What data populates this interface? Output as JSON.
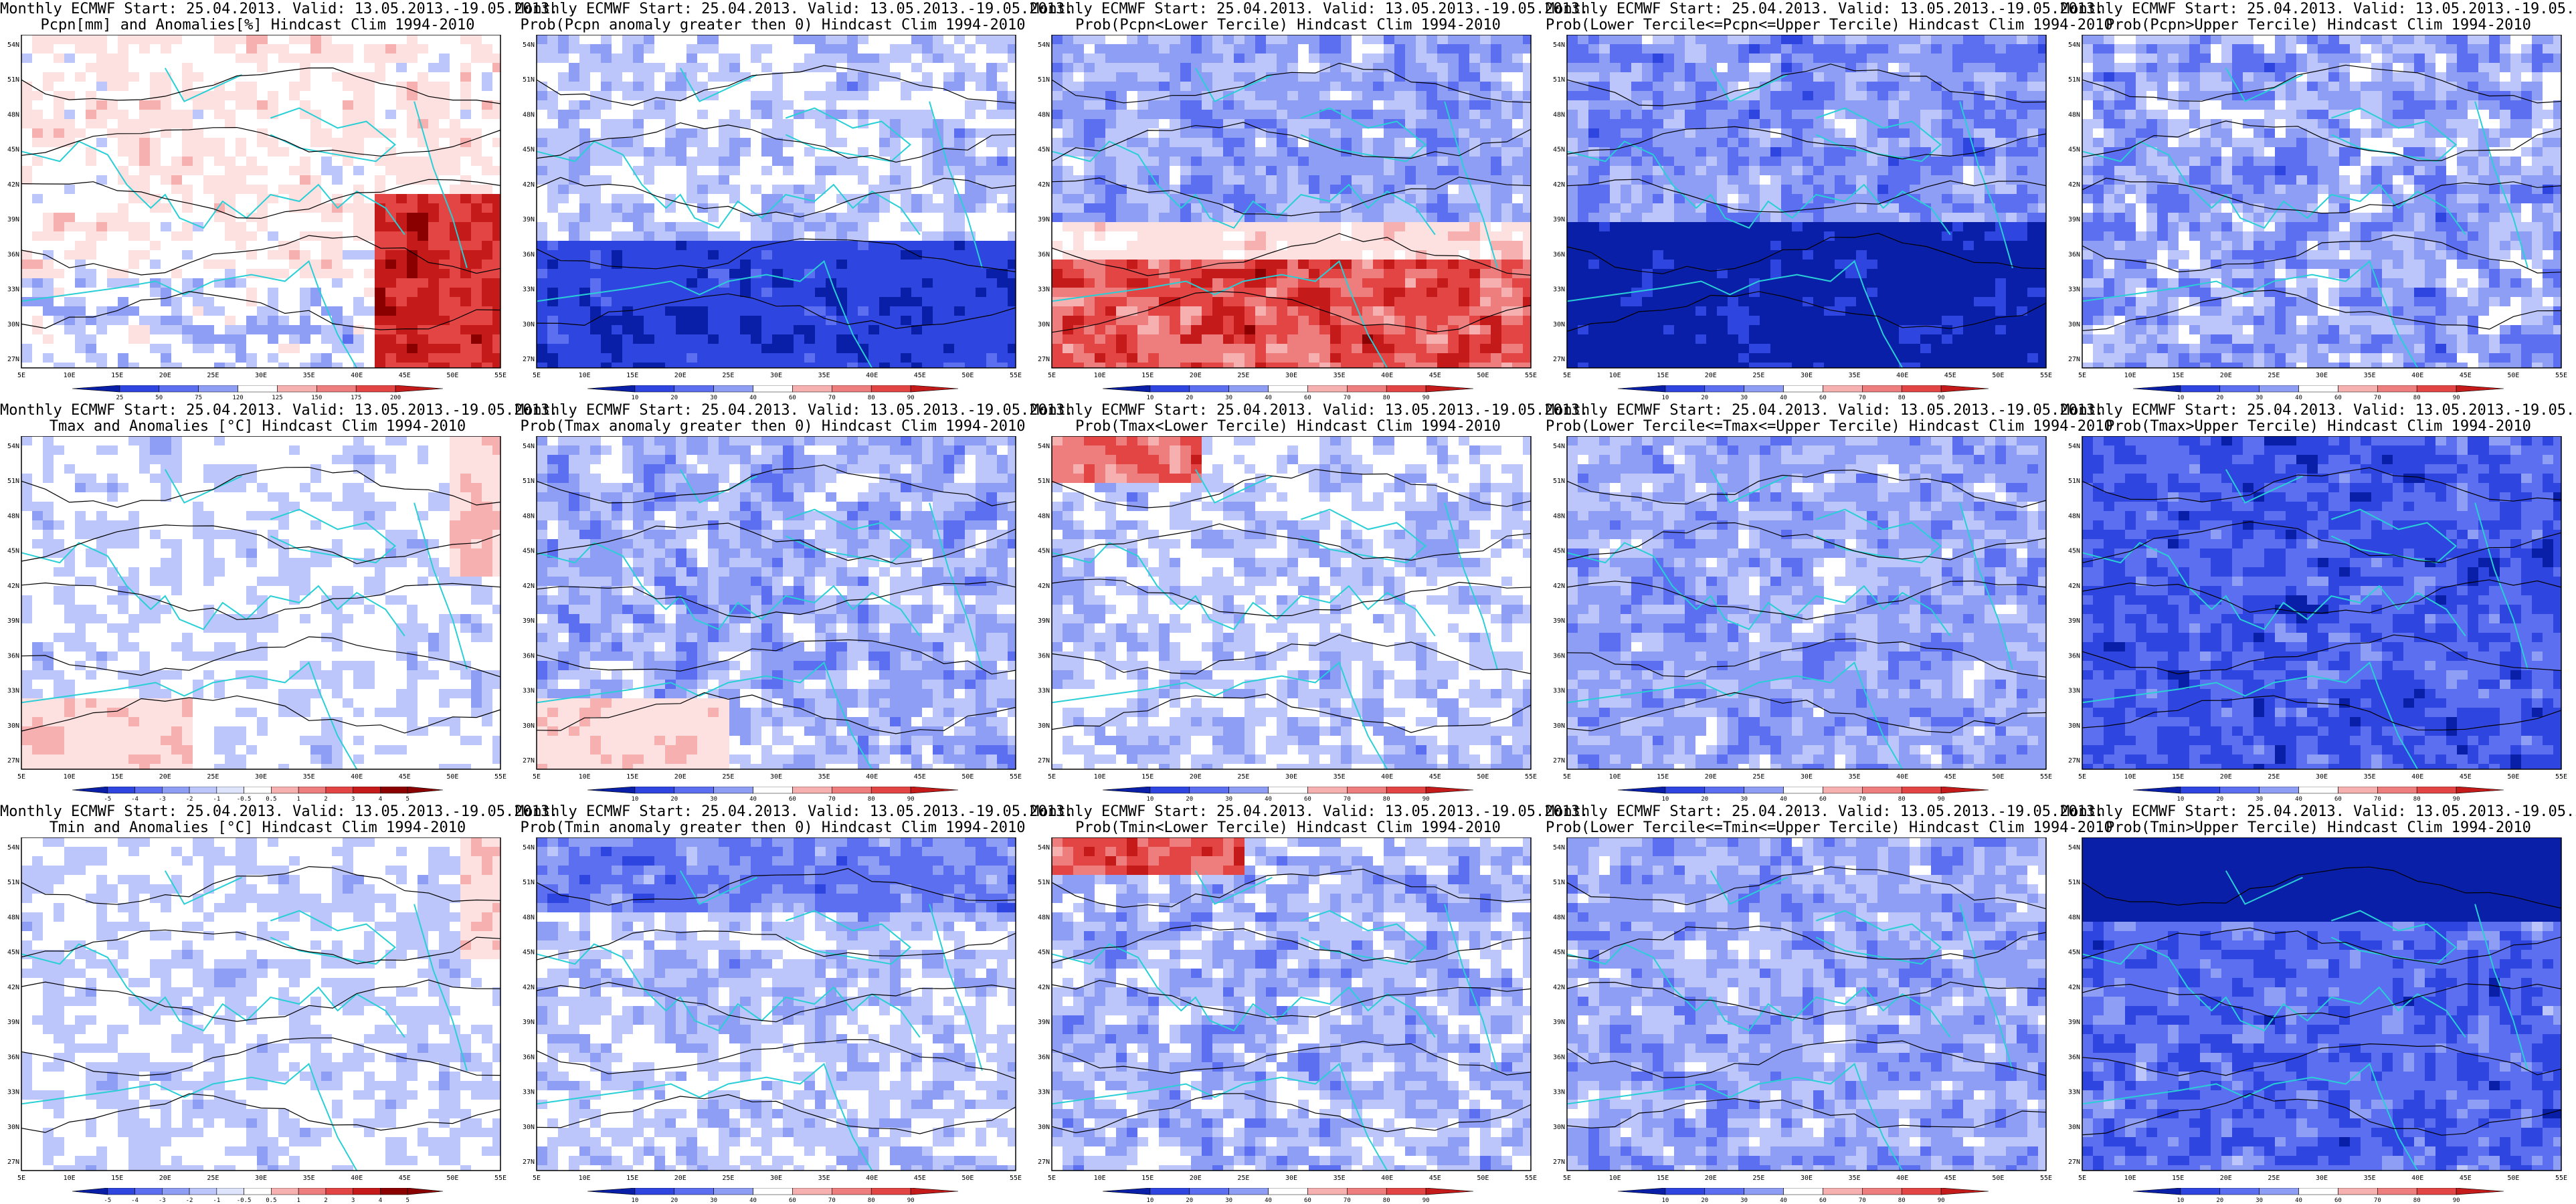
{
  "header_line": "Monthly ECMWF Start: 25.04.2013. Valid: 13.05.2013.-19.05.2013.",
  "lon_labels": [
    "5E",
    "10E",
    "15E",
    "20E",
    "25E",
    "30E",
    "35E",
    "40E",
    "45E",
    "50E",
    "55E"
  ],
  "lat_labels": [
    "54N",
    "51N",
    "48N",
    "45N",
    "42N",
    "39N",
    "36N",
    "33N",
    "30N",
    "27N"
  ],
  "colorbars": {
    "pcpn_anom": [
      "25",
      "50",
      "75",
      "120",
      "125",
      "150",
      "175",
      "200"
    ],
    "prob": [
      "10",
      "20",
      "30",
      "40",
      "60",
      "70",
      "80",
      "90"
    ],
    "temp_anom": [
      "-5",
      "-4",
      "-3",
      "-2",
      "-1",
      "-0.5",
      "0.5",
      "1",
      "2",
      "3",
      "4",
      "5"
    ]
  },
  "colors": {
    "map_bg": "#ffffff",
    "land_border": "#29cfd6",
    "contour": "#000000",
    "blue_scale": [
      "#0a1fa8",
      "#2f45e0",
      "#5c6ff0",
      "#8f9ef5",
      "#bcc6fa",
      "#dfe4fd"
    ],
    "red_scale": [
      "#fde0e0",
      "#f6b0b0",
      "#ee7d7d",
      "#e34444",
      "#c41a1a",
      "#8a0000"
    ]
  },
  "panels": [
    {
      "row": 0,
      "col": 0,
      "title2": "Pcpn[mm] and Anomalies[%] Hindcast Clim 1994-2010",
      "colorbar": "pcpn_anom",
      "pattern": "pcpn_anom"
    },
    {
      "row": 0,
      "col": 1,
      "title2": "Prob(Pcpn anomaly greater then 0) Hindcast Clim 1994-2010",
      "colorbar": "prob",
      "pattern": "pcpn_gt0"
    },
    {
      "row": 0,
      "col": 2,
      "title2": "Prob(Pcpn<Lower Tercile) Hindcast Clim 1994-2010",
      "colorbar": "prob",
      "pattern": "pcpn_lower"
    },
    {
      "row": 0,
      "col": 3,
      "title2": "Prob(Lower Tercile<=Pcpn<=Upper Tercile) Hindcast Clim 1994-2010",
      "colorbar": "prob",
      "pattern": "pcpn_middle"
    },
    {
      "row": 0,
      "col": 4,
      "title2": "Prob(Pcpn>Upper Tercile) Hindcast Clim 1994-2010",
      "colorbar": "prob",
      "pattern": "pcpn_upper"
    },
    {
      "row": 1,
      "col": 0,
      "title2": "Tmax and Anomalies [°C] Hindcast Clim 1994-2010",
      "colorbar": "temp_anom",
      "pattern": "tmax_anom"
    },
    {
      "row": 1,
      "col": 1,
      "title2": "Prob(Tmax anomaly greater then 0) Hindcast Clim 1994-2010",
      "colorbar": "prob",
      "pattern": "tmax_gt0"
    },
    {
      "row": 1,
      "col": 2,
      "title2": "Prob(Tmax<Lower Tercile) Hindcast Clim 1994-2010",
      "colorbar": "prob",
      "pattern": "tmax_lower"
    },
    {
      "row": 1,
      "col": 3,
      "title2": "Prob(Lower Tercile<=Tmax<=Upper Tercile) Hindcast Clim 1994-2010",
      "colorbar": "prob",
      "pattern": "tmax_middle"
    },
    {
      "row": 1,
      "col": 4,
      "title2": "Prob(Tmax>Upper Tercile) Hindcast Clim 1994-2010",
      "colorbar": "prob",
      "pattern": "tmax_upper"
    },
    {
      "row": 2,
      "col": 0,
      "title2": "Tmin and Anomalies [°C] Hindcast Clim 1994-2010",
      "colorbar": "temp_anom",
      "pattern": "tmin_anom"
    },
    {
      "row": 2,
      "col": 1,
      "title2": "Prob(Tmin anomaly greater then 0) Hindcast Clim 1994-2010",
      "colorbar": "prob",
      "pattern": "tmin_gt0"
    },
    {
      "row": 2,
      "col": 2,
      "title2": "Prob(Tmin<Lower Tercile) Hindcast Clim 1994-2010",
      "colorbar": "prob",
      "pattern": "tmin_lower"
    },
    {
      "row": 2,
      "col": 3,
      "title2": "Prob(Lower Tercile<=Tmin<=Upper Tercile) Hindcast Clim 1994-2010",
      "colorbar": "prob",
      "pattern": "tmin_middle"
    },
    {
      "row": 2,
      "col": 4,
      "title2": "Prob(Tmin>Upper Tercile) Hindcast Clim 1994-2010",
      "colorbar": "prob",
      "pattern": "tmin_upper"
    }
  ]
}
